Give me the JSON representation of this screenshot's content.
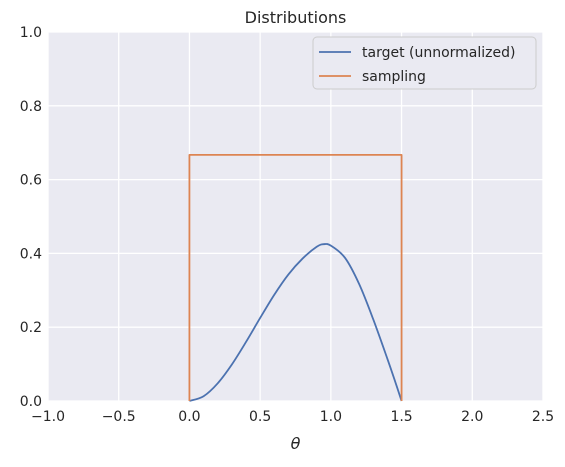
{
  "chart_data": {
    "type": "line",
    "title": "Distributions",
    "xlabel": "θ",
    "ylabel": "",
    "xlim": [
      -1.0,
      2.5
    ],
    "ylim": [
      0.0,
      1.0
    ],
    "xticks": [
      "−1.0",
      "−0.5",
      "0.0",
      "0.5",
      "1.0",
      "1.5",
      "2.0",
      "2.5"
    ],
    "yticks": [
      "0.0",
      "0.2",
      "0.4",
      "0.6",
      "0.8",
      "1.0"
    ],
    "grid": true,
    "legend_position": "top-right",
    "series": [
      {
        "name": "target (unnormalized)",
        "color": "#4c72b0",
        "x": [
          0.0,
          0.1,
          0.2,
          0.3,
          0.4,
          0.5,
          0.6,
          0.7,
          0.8,
          0.9,
          0.95,
          1.0,
          1.1,
          1.2,
          1.3,
          1.4,
          1.45,
          1.5
        ],
        "y": [
          0.0,
          0.013,
          0.048,
          0.099,
          0.16,
          0.225,
          0.288,
          0.343,
          0.386,
          0.418,
          0.425,
          0.421,
          0.388,
          0.317,
          0.221,
          0.114,
          0.058,
          0.0
        ]
      },
      {
        "name": "sampling",
        "color": "#dd8452",
        "x": [
          0.0,
          0.0,
          1.5,
          1.5
        ],
        "y": [
          0.0,
          0.667,
          0.667,
          0.0
        ]
      }
    ]
  }
}
